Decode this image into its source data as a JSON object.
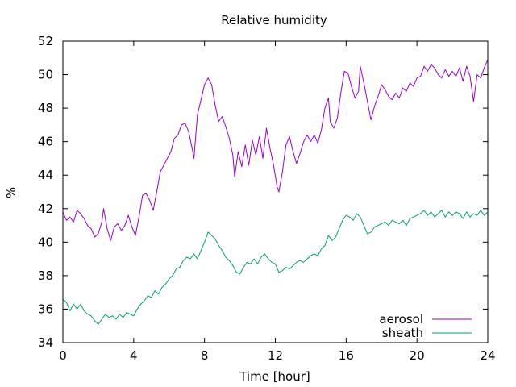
{
  "chart_data": {
    "type": "line",
    "title": "Relative humidity",
    "xlabel": "Time [hour]",
    "ylabel": "%",
    "xlim": [
      0,
      24
    ],
    "ylim": [
      34,
      52
    ],
    "xticks": [
      0,
      4,
      8,
      12,
      16,
      20,
      24
    ],
    "yticks": [
      34,
      36,
      38,
      40,
      42,
      44,
      46,
      48,
      50,
      52
    ],
    "grid": false,
    "legend_position": "bottom-right",
    "series": [
      {
        "name": "aerosol",
        "color": "#9400d3",
        "points": [
          [
            0.0,
            41.8
          ],
          [
            0.2,
            41.3
          ],
          [
            0.4,
            41.5
          ],
          [
            0.6,
            41.2
          ],
          [
            0.8,
            41.9
          ],
          [
            1.0,
            41.7
          ],
          [
            1.2,
            41.4
          ],
          [
            1.4,
            41.0
          ],
          [
            1.6,
            40.8
          ],
          [
            1.8,
            40.3
          ],
          [
            2.0,
            40.5
          ],
          [
            2.2,
            41.2
          ],
          [
            2.3,
            42.0
          ],
          [
            2.5,
            40.8
          ],
          [
            2.7,
            40.1
          ],
          [
            2.9,
            40.9
          ],
          [
            3.1,
            41.1
          ],
          [
            3.3,
            40.7
          ],
          [
            3.5,
            41.0
          ],
          [
            3.7,
            41.6
          ],
          [
            3.9,
            40.9
          ],
          [
            4.1,
            40.4
          ],
          [
            4.3,
            41.5
          ],
          [
            4.5,
            42.8
          ],
          [
            4.7,
            42.9
          ],
          [
            4.9,
            42.5
          ],
          [
            5.1,
            41.9
          ],
          [
            5.3,
            43.0
          ],
          [
            5.5,
            44.2
          ],
          [
            5.7,
            44.6
          ],
          [
            5.9,
            45.0
          ],
          [
            6.1,
            45.4
          ],
          [
            6.3,
            46.2
          ],
          [
            6.5,
            46.4
          ],
          [
            6.7,
            47.0
          ],
          [
            6.9,
            47.1
          ],
          [
            7.1,
            46.6
          ],
          [
            7.3,
            45.6
          ],
          [
            7.4,
            45.0
          ],
          [
            7.6,
            47.6
          ],
          [
            7.8,
            48.5
          ],
          [
            8.0,
            49.4
          ],
          [
            8.2,
            49.8
          ],
          [
            8.4,
            49.4
          ],
          [
            8.6,
            48.2
          ],
          [
            8.8,
            47.2
          ],
          [
            9.0,
            47.5
          ],
          [
            9.2,
            46.9
          ],
          [
            9.4,
            46.2
          ],
          [
            9.6,
            45.2
          ],
          [
            9.7,
            43.9
          ],
          [
            9.9,
            45.4
          ],
          [
            10.1,
            44.5
          ],
          [
            10.3,
            45.8
          ],
          [
            10.5,
            44.6
          ],
          [
            10.7,
            46.1
          ],
          [
            10.9,
            45.2
          ],
          [
            11.1,
            46.3
          ],
          [
            11.3,
            45.0
          ],
          [
            11.5,
            46.8
          ],
          [
            11.7,
            45.6
          ],
          [
            11.9,
            44.6
          ],
          [
            12.1,
            43.3
          ],
          [
            12.2,
            43.0
          ],
          [
            12.4,
            44.2
          ],
          [
            12.6,
            45.8
          ],
          [
            12.8,
            46.3
          ],
          [
            13.0,
            45.4
          ],
          [
            13.2,
            44.7
          ],
          [
            13.4,
            45.3
          ],
          [
            13.6,
            46.0
          ],
          [
            13.8,
            46.4
          ],
          [
            14.0,
            46.0
          ],
          [
            14.2,
            46.4
          ],
          [
            14.4,
            45.9
          ],
          [
            14.6,
            46.7
          ],
          [
            14.8,
            48.0
          ],
          [
            15.0,
            48.6
          ],
          [
            15.1,
            47.2
          ],
          [
            15.3,
            46.8
          ],
          [
            15.5,
            47.4
          ],
          [
            15.7,
            48.9
          ],
          [
            15.9,
            50.2
          ],
          [
            16.1,
            50.1
          ],
          [
            16.3,
            49.3
          ],
          [
            16.5,
            48.6
          ],
          [
            16.7,
            49.0
          ],
          [
            16.8,
            50.5
          ],
          [
            17.0,
            49.5
          ],
          [
            17.2,
            48.4
          ],
          [
            17.4,
            47.3
          ],
          [
            17.6,
            48.1
          ],
          [
            17.8,
            48.7
          ],
          [
            18.0,
            49.4
          ],
          [
            18.2,
            49.1
          ],
          [
            18.4,
            48.7
          ],
          [
            18.6,
            48.5
          ],
          [
            18.8,
            48.9
          ],
          [
            19.0,
            48.6
          ],
          [
            19.2,
            49.2
          ],
          [
            19.4,
            49.0
          ],
          [
            19.6,
            49.5
          ],
          [
            19.8,
            49.3
          ],
          [
            20.0,
            49.8
          ],
          [
            20.2,
            49.9
          ],
          [
            20.4,
            50.5
          ],
          [
            20.6,
            50.2
          ],
          [
            20.8,
            50.6
          ],
          [
            21.0,
            50.4
          ],
          [
            21.2,
            50.0
          ],
          [
            21.4,
            49.8
          ],
          [
            21.6,
            50.3
          ],
          [
            21.8,
            49.9
          ],
          [
            22.0,
            50.2
          ],
          [
            22.2,
            49.9
          ],
          [
            22.4,
            50.4
          ],
          [
            22.6,
            49.6
          ],
          [
            22.8,
            50.5
          ],
          [
            23.0,
            49.9
          ],
          [
            23.2,
            48.4
          ],
          [
            23.4,
            50.0
          ],
          [
            23.6,
            49.8
          ],
          [
            23.8,
            50.4
          ],
          [
            24.0,
            50.9
          ]
        ]
      },
      {
        "name": "sheath",
        "color": "#009e73",
        "points": [
          [
            0.0,
            36.6
          ],
          [
            0.2,
            36.4
          ],
          [
            0.4,
            35.9
          ],
          [
            0.6,
            36.3
          ],
          [
            0.8,
            36.0
          ],
          [
            1.0,
            36.3
          ],
          [
            1.2,
            35.9
          ],
          [
            1.4,
            35.7
          ],
          [
            1.6,
            35.6
          ],
          [
            1.8,
            35.3
          ],
          [
            2.0,
            35.1
          ],
          [
            2.2,
            35.4
          ],
          [
            2.4,
            35.7
          ],
          [
            2.6,
            35.5
          ],
          [
            2.8,
            35.6
          ],
          [
            3.0,
            35.4
          ],
          [
            3.2,
            35.7
          ],
          [
            3.4,
            35.5
          ],
          [
            3.6,
            35.8
          ],
          [
            3.8,
            35.7
          ],
          [
            4.0,
            35.6
          ],
          [
            4.2,
            36.0
          ],
          [
            4.4,
            36.3
          ],
          [
            4.6,
            36.5
          ],
          [
            4.8,
            36.8
          ],
          [
            5.0,
            36.7
          ],
          [
            5.2,
            37.1
          ],
          [
            5.4,
            36.9
          ],
          [
            5.6,
            37.3
          ],
          [
            5.8,
            37.5
          ],
          [
            6.0,
            37.8
          ],
          [
            6.2,
            38.0
          ],
          [
            6.4,
            38.4
          ],
          [
            6.6,
            38.5
          ],
          [
            6.8,
            38.9
          ],
          [
            7.0,
            39.1
          ],
          [
            7.2,
            39.0
          ],
          [
            7.4,
            39.3
          ],
          [
            7.6,
            39.0
          ],
          [
            7.8,
            39.5
          ],
          [
            8.0,
            40.0
          ],
          [
            8.2,
            40.6
          ],
          [
            8.4,
            40.4
          ],
          [
            8.6,
            40.2
          ],
          [
            8.8,
            39.8
          ],
          [
            9.0,
            39.5
          ],
          [
            9.2,
            39.1
          ],
          [
            9.4,
            38.9
          ],
          [
            9.6,
            38.6
          ],
          [
            9.8,
            38.2
          ],
          [
            10.0,
            38.1
          ],
          [
            10.2,
            38.5
          ],
          [
            10.4,
            38.8
          ],
          [
            10.6,
            38.7
          ],
          [
            10.8,
            39.0
          ],
          [
            11.0,
            38.7
          ],
          [
            11.2,
            39.1
          ],
          [
            11.4,
            39.3
          ],
          [
            11.6,
            39.0
          ],
          [
            11.8,
            38.8
          ],
          [
            12.0,
            38.7
          ],
          [
            12.2,
            38.2
          ],
          [
            12.4,
            38.3
          ],
          [
            12.6,
            38.5
          ],
          [
            12.8,
            38.4
          ],
          [
            13.0,
            38.6
          ],
          [
            13.2,
            38.8
          ],
          [
            13.4,
            38.9
          ],
          [
            13.6,
            38.8
          ],
          [
            13.8,
            39.0
          ],
          [
            14.0,
            39.2
          ],
          [
            14.2,
            39.3
          ],
          [
            14.4,
            39.2
          ],
          [
            14.6,
            39.6
          ],
          [
            14.8,
            39.8
          ],
          [
            15.0,
            40.4
          ],
          [
            15.2,
            40.1
          ],
          [
            15.4,
            40.3
          ],
          [
            15.6,
            40.8
          ],
          [
            15.8,
            41.3
          ],
          [
            16.0,
            41.6
          ],
          [
            16.2,
            41.5
          ],
          [
            16.4,
            41.3
          ],
          [
            16.6,
            41.7
          ],
          [
            16.8,
            41.5
          ],
          [
            17.0,
            41.0
          ],
          [
            17.2,
            40.5
          ],
          [
            17.4,
            40.6
          ],
          [
            17.6,
            40.9
          ],
          [
            17.8,
            41.0
          ],
          [
            18.0,
            41.1
          ],
          [
            18.2,
            41.2
          ],
          [
            18.4,
            41.0
          ],
          [
            18.6,
            41.3
          ],
          [
            18.8,
            41.2
          ],
          [
            19.0,
            41.1
          ],
          [
            19.2,
            41.3
          ],
          [
            19.4,
            41.0
          ],
          [
            19.6,
            41.4
          ],
          [
            19.8,
            41.5
          ],
          [
            20.0,
            41.6
          ],
          [
            20.2,
            41.7
          ],
          [
            20.4,
            41.9
          ],
          [
            20.6,
            41.6
          ],
          [
            20.8,
            41.8
          ],
          [
            21.0,
            41.5
          ],
          [
            21.2,
            41.7
          ],
          [
            21.4,
            41.9
          ],
          [
            21.6,
            41.5
          ],
          [
            21.8,
            41.8
          ],
          [
            22.0,
            41.6
          ],
          [
            22.2,
            41.8
          ],
          [
            22.4,
            41.7
          ],
          [
            22.6,
            41.4
          ],
          [
            22.8,
            41.8
          ],
          [
            23.0,
            41.5
          ],
          [
            23.2,
            41.7
          ],
          [
            23.4,
            41.6
          ],
          [
            23.6,
            41.9
          ],
          [
            23.8,
            41.6
          ],
          [
            24.0,
            41.8
          ]
        ]
      }
    ]
  }
}
